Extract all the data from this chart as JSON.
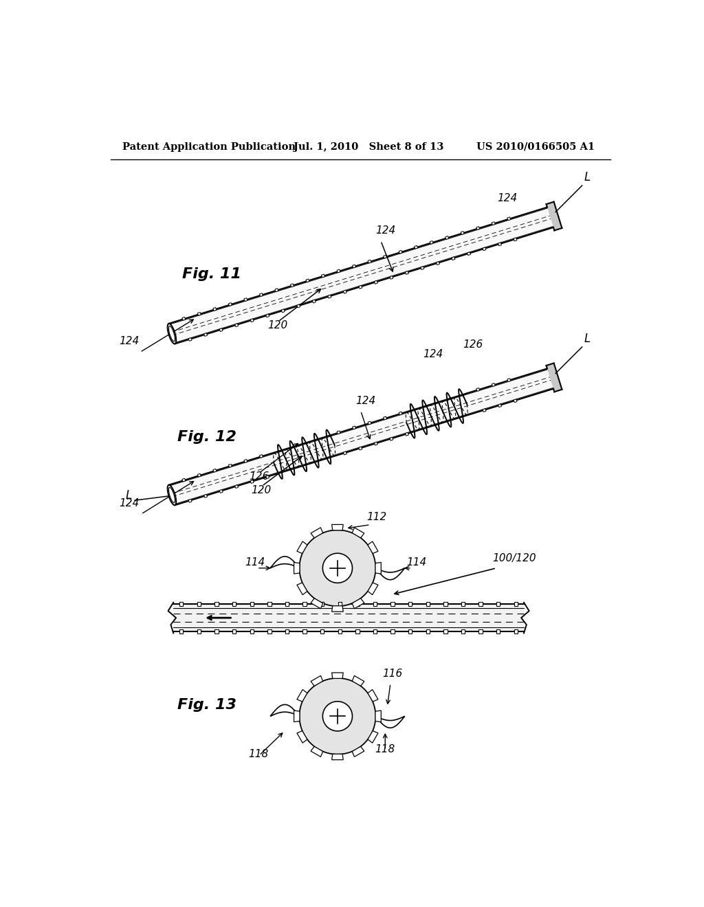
{
  "background_color": "#ffffff",
  "header_left": "Patent Application Publication",
  "header_mid": "Jul. 1, 2010   Sheet 8 of 13",
  "header_right": "US 2010/0166505 A1",
  "fig11_label": "Fig. 11",
  "fig12_label": "Fig. 12",
  "fig13_label": "Fig. 13"
}
